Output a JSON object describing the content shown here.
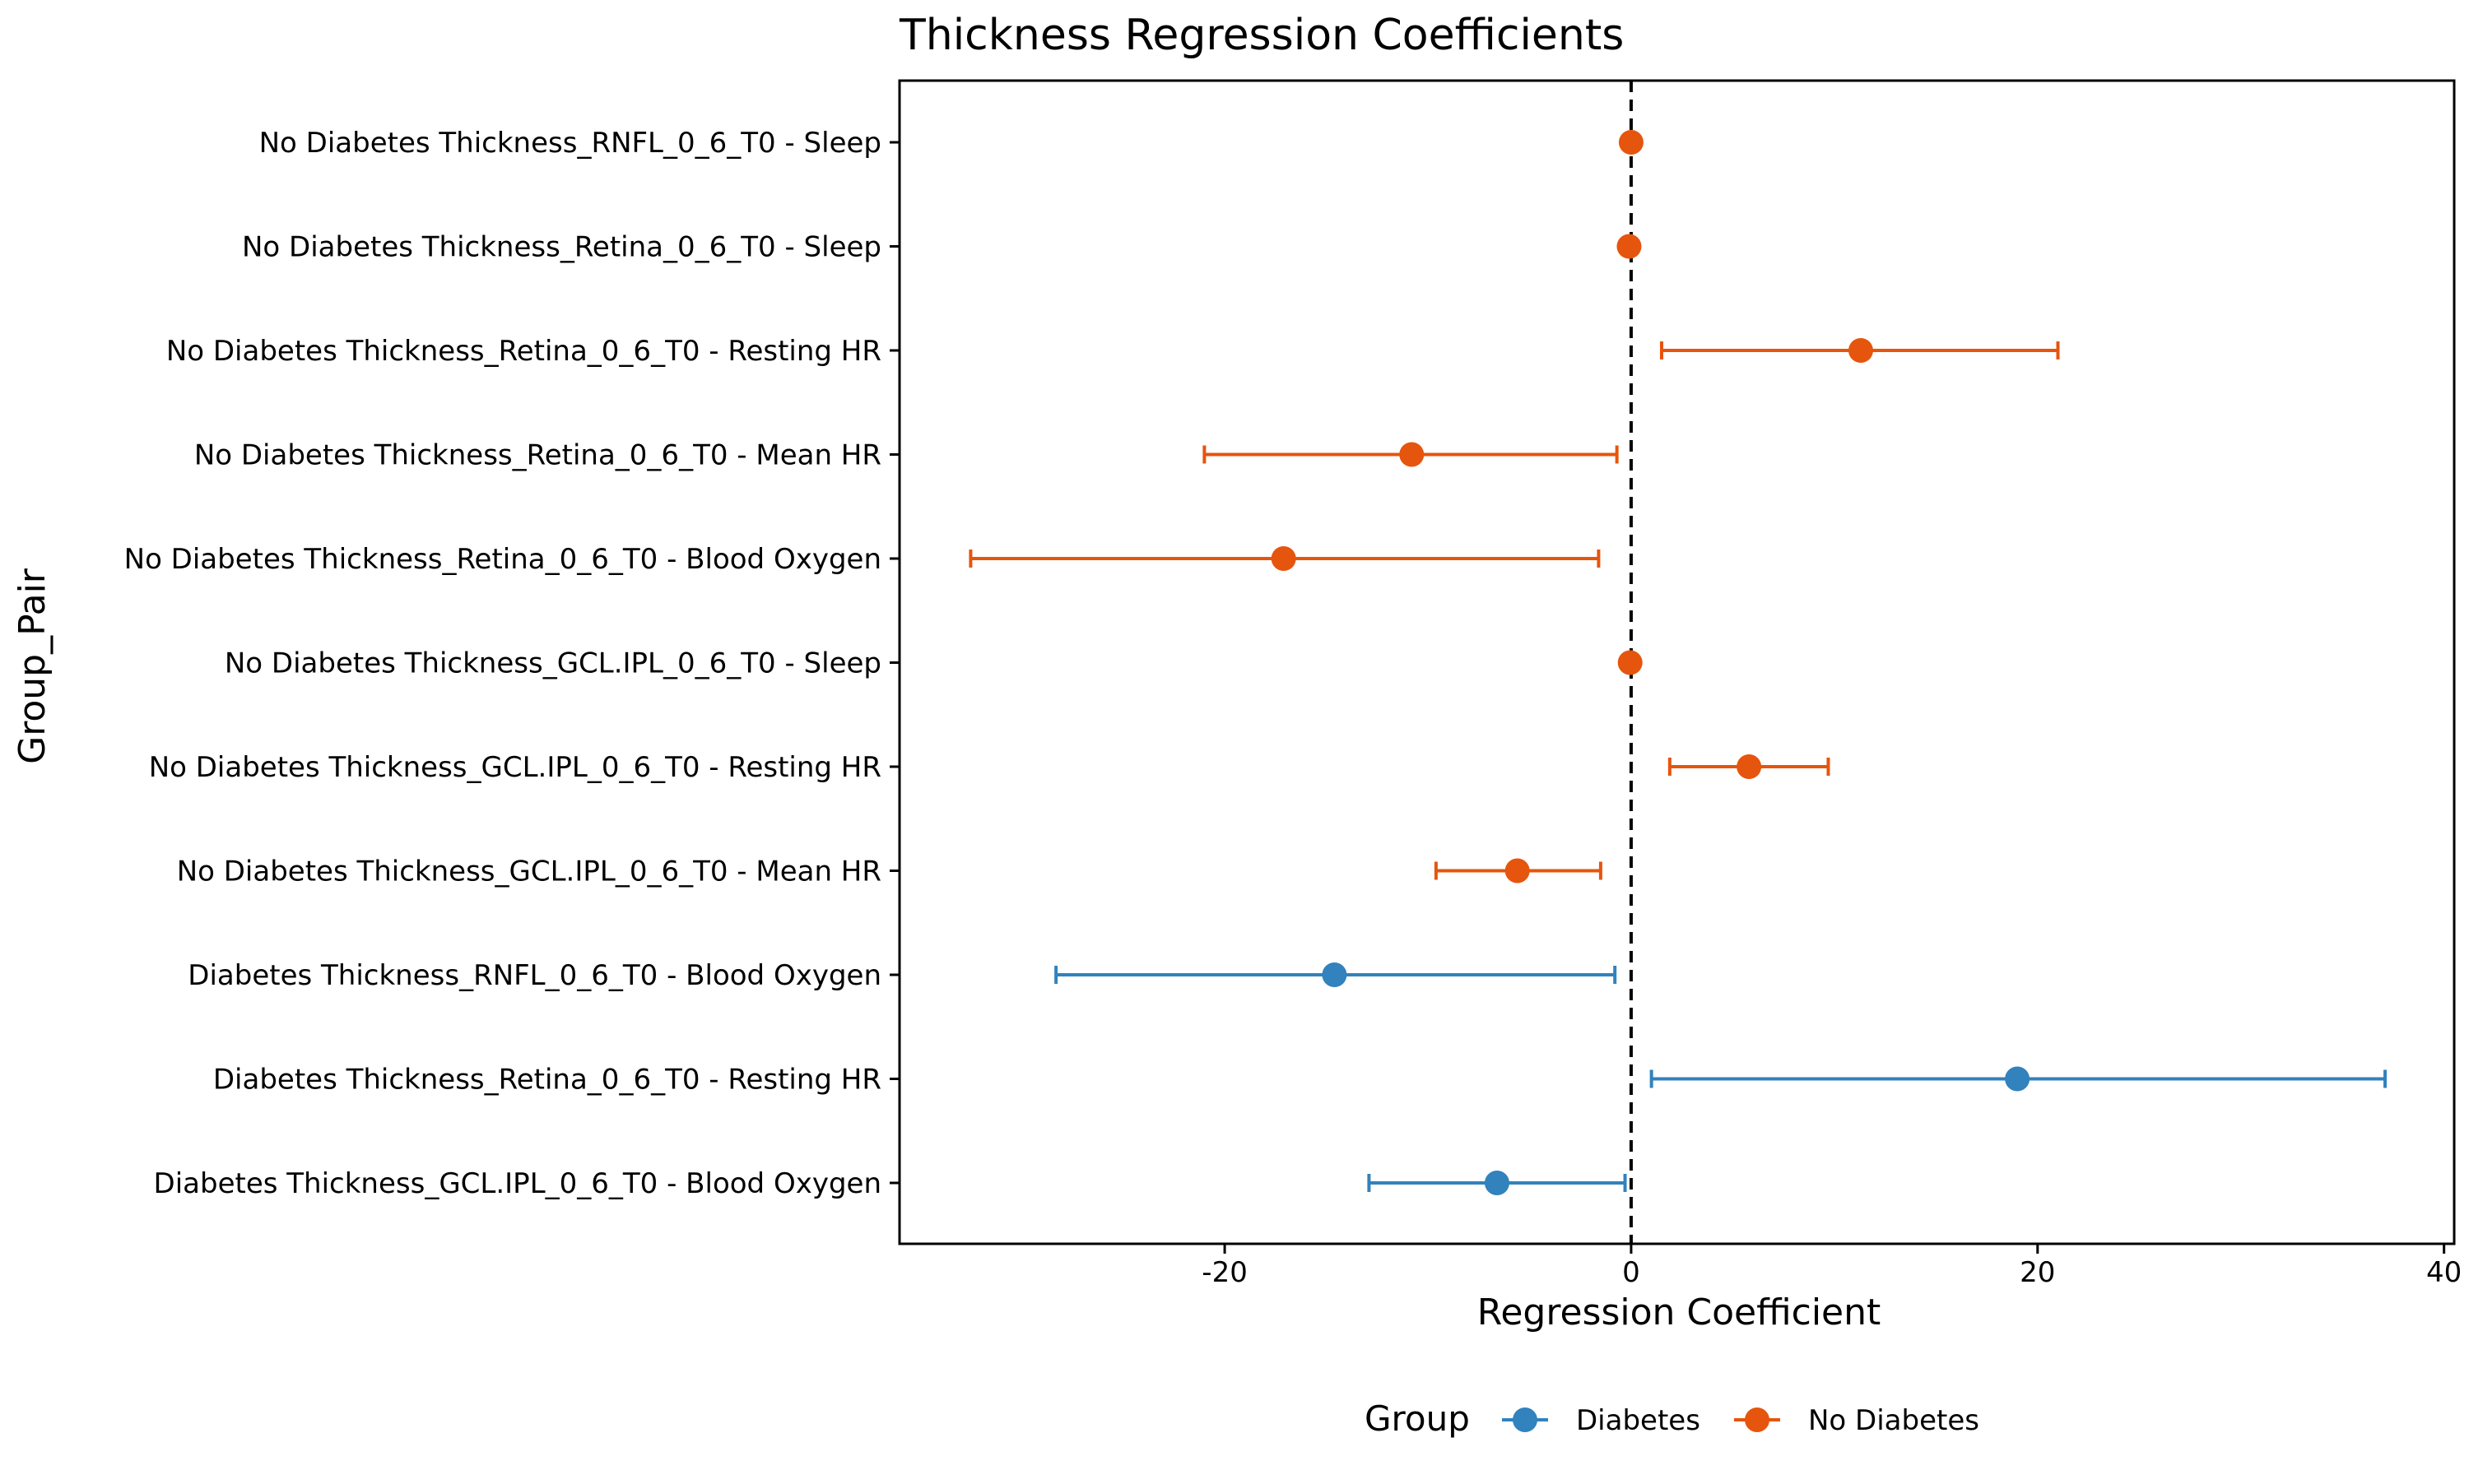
{
  "chart_data": {
    "type": "forest",
    "title": "Thickness Regression Coefficients",
    "xlabel": "Regression Coefficient",
    "ylabel": "Group_Pair",
    "xlim": [
      -36,
      40.5
    ],
    "xticks": [
      -20,
      0,
      20,
      40
    ],
    "xtick_labels": [
      "-20",
      "0",
      "20",
      "40"
    ],
    "reference_line": 0,
    "groups": [
      {
        "name": "Diabetes",
        "color": "#3182bd"
      },
      {
        "name": "No Diabetes",
        "color": "#e6550d"
      }
    ],
    "legend": {
      "title": "Group",
      "position": "bottom",
      "entries": [
        "Diabetes",
        "No Diabetes"
      ]
    },
    "rows": [
      {
        "label": "No Diabetes Thickness_RNFL_0_6_T0 - Sleep",
        "group": "No Diabetes",
        "estimate": 0.0,
        "ci_low": 0.0,
        "ci_high": 0.0
      },
      {
        "label": "No Diabetes Thickness_Retina_0_6_T0 - Sleep",
        "group": "No Diabetes",
        "estimate": -0.1,
        "ci_low": -0.1,
        "ci_high": -0.1
      },
      {
        "label": "No Diabetes Thickness_Retina_0_6_T0 - Resting HR",
        "group": "No Diabetes",
        "estimate": 11.3,
        "ci_low": 1.5,
        "ci_high": 21.0
      },
      {
        "label": "No Diabetes Thickness_Retina_0_6_T0 - Mean HR",
        "group": "No Diabetes",
        "estimate": -10.8,
        "ci_low": -21.0,
        "ci_high": -0.7
      },
      {
        "label": "No Diabetes Thickness_Retina_0_6_T0 - Blood Oxygen",
        "group": "No Diabetes",
        "estimate": -17.1,
        "ci_low": -32.5,
        "ci_high": -1.6
      },
      {
        "label": "No Diabetes Thickness_GCL.IPL_0_6_T0 - Sleep",
        "group": "No Diabetes",
        "estimate": -0.05,
        "ci_low": -0.05,
        "ci_high": -0.05
      },
      {
        "label": "No Diabetes Thickness_GCL.IPL_0_6_T0 - Resting HR",
        "group": "No Diabetes",
        "estimate": 5.8,
        "ci_low": 1.9,
        "ci_high": 9.7
      },
      {
        "label": "No Diabetes Thickness_GCL.IPL_0_6_T0 - Mean HR",
        "group": "No Diabetes",
        "estimate": -5.6,
        "ci_low": -9.6,
        "ci_high": -1.5
      },
      {
        "label": "Diabetes Thickness_RNFL_0_6_T0 - Blood Oxygen",
        "group": "Diabetes",
        "estimate": -14.6,
        "ci_low": -28.3,
        "ci_high": -0.8
      },
      {
        "label": "Diabetes Thickness_Retina_0_6_T0 - Resting HR",
        "group": "Diabetes",
        "estimate": 19.0,
        "ci_low": 1.0,
        "ci_high": 37.1
      },
      {
        "label": "Diabetes Thickness_GCL.IPL_0_6_T0 - Blood Oxygen",
        "group": "Diabetes",
        "estimate": -6.6,
        "ci_low": -12.9,
        "ci_high": -0.3
      }
    ]
  }
}
